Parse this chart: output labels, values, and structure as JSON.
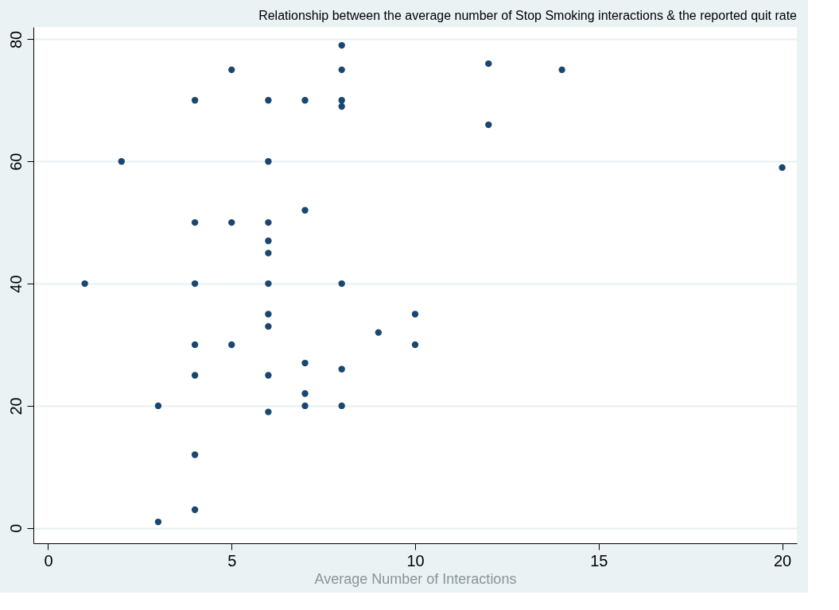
{
  "chart_data": {
    "type": "scatter",
    "title": "Relationship between the average number of Stop Smoking interactions & the reported quit rate",
    "xlabel": "Average Number of Interactions",
    "x": [
      1,
      2,
      3,
      3,
      4,
      4,
      4,
      4,
      4,
      4,
      4,
      5,
      5,
      5,
      6,
      6,
      6,
      6,
      6,
      6,
      6,
      6,
      6,
      6,
      7,
      7,
      7,
      7,
      7,
      8,
      8,
      8,
      8,
      8,
      8,
      8,
      9,
      10,
      10,
      12,
      12,
      14,
      20
    ],
    "series": [
      {
        "color": "#1a476f",
        "values": [
          40,
          60,
          20,
          1,
          70,
          50,
          40,
          30,
          25,
          12,
          3,
          75,
          50,
          30,
          70,
          60,
          50,
          47,
          45,
          40,
          35,
          33,
          25,
          19,
          70,
          52,
          27,
          22,
          20,
          79,
          75,
          70,
          69,
          40,
          26,
          20,
          32,
          35,
          30,
          76,
          66,
          75,
          59
        ]
      }
    ],
    "xlim": [
      -0.4,
      20.4
    ],
    "ylim": [
      -2.5,
      82
    ],
    "xticks": [
      0,
      5,
      10,
      15,
      20
    ],
    "yticks": [
      0,
      20,
      40,
      60,
      80
    ],
    "grid": "y",
    "marker": "circle"
  }
}
